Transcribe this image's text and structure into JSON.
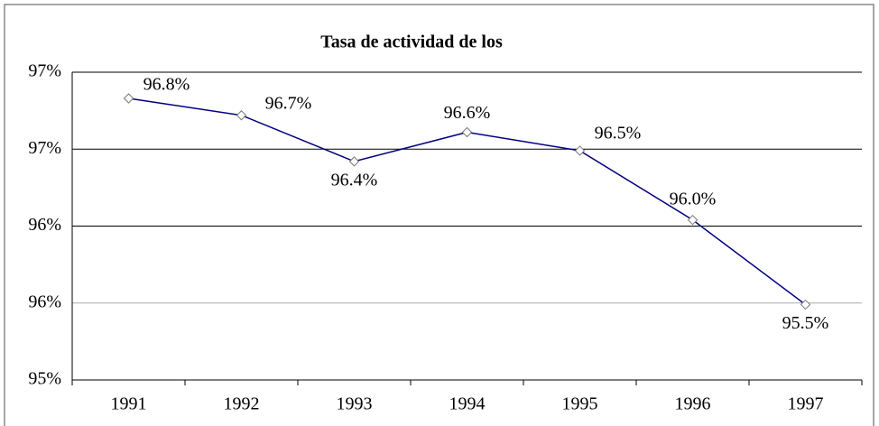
{
  "chart_data": {
    "type": "line",
    "title": "Tasa de actividad de los",
    "categories": [
      "1991",
      "1992",
      "1993",
      "1994",
      "1995",
      "1996",
      "1997"
    ],
    "values": [
      96.83,
      96.72,
      96.42,
      96.61,
      96.49,
      96.04,
      95.49
    ],
    "value_labels": [
      "96.8%",
      "96.7%",
      "96.4%",
      "96.6%",
      "96.5%",
      "96.0%",
      "95.5%"
    ],
    "color": "#000080",
    "ylim": [
      95,
      97
    ],
    "yticks": [
      {
        "value": 95,
        "label": "95%"
      },
      {
        "value": 95.5,
        "label": "96%"
      },
      {
        "value": 96,
        "label": "96%"
      },
      {
        "value": 96.5,
        "label": "97%"
      },
      {
        "value": 97,
        "label": "97%"
      }
    ],
    "grid": true
  }
}
